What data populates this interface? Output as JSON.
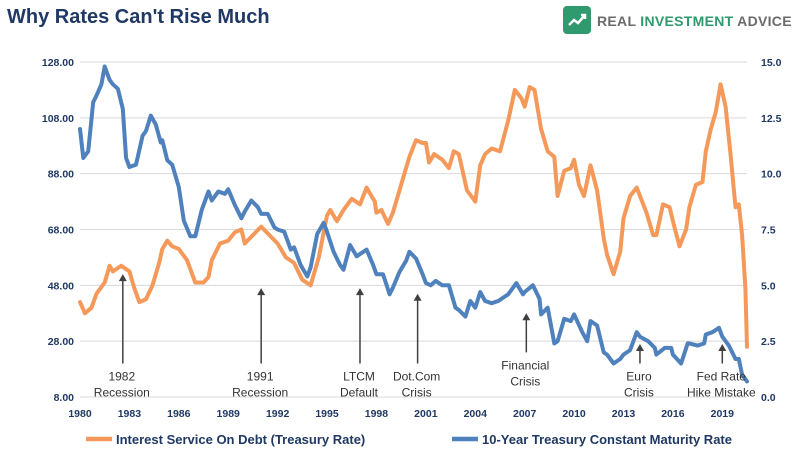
{
  "title": "Why Rates Can't Rise Much",
  "brand": {
    "name_part1": "REAL ",
    "name_part2": "INVESTMENT",
    "name_part3": " ADVICE",
    "icon": "chart-badge-icon",
    "color": "#2e9a6e"
  },
  "chart_data": {
    "type": "line",
    "title": "Why Rates Can't Rise Much",
    "x_range": [
      1980,
      2020.5
    ],
    "x_ticks": [
      "1980",
      "1983",
      "1986",
      "1989",
      "1992",
      "1995",
      "1998",
      "2001",
      "2004",
      "2007",
      "2010",
      "2013",
      "2016",
      "2019"
    ],
    "y_left": {
      "range": [
        8,
        128
      ],
      "ticks": [
        "8.00",
        "28.00",
        "48.00",
        "68.00",
        "88.00",
        "108.00",
        "128.00"
      ]
    },
    "y_right": {
      "range": [
        0,
        15
      ],
      "ticks": [
        "0.0",
        "2.5",
        "5.0",
        "7.5",
        "10.0",
        "12.5",
        "15.0"
      ]
    },
    "grid": "horizontal",
    "legend_position": "bottom",
    "series": [
      {
        "name": "Interest Service On Debt (Treasury Rate)",
        "axis": "left",
        "color": "#f4995a",
        "points": [
          [
            1980,
            42
          ],
          [
            1980.3,
            38
          ],
          [
            1980.7,
            40
          ],
          [
            1981,
            45
          ],
          [
            1981.5,
            49
          ],
          [
            1981.8,
            55
          ],
          [
            1982,
            53
          ],
          [
            1982.5,
            55
          ],
          [
            1983,
            53
          ],
          [
            1983.3,
            47
          ],
          [
            1983.6,
            42
          ],
          [
            1984,
            43
          ],
          [
            1984.4,
            48
          ],
          [
            1984.8,
            56
          ],
          [
            1985,
            61
          ],
          [
            1985.3,
            64
          ],
          [
            1985.6,
            62
          ],
          [
            1986,
            61
          ],
          [
            1986.5,
            57
          ],
          [
            1987,
            49
          ],
          [
            1987.5,
            49
          ],
          [
            1987.8,
            51
          ],
          [
            1988,
            57
          ],
          [
            1988.5,
            63
          ],
          [
            1989,
            64
          ],
          [
            1989.4,
            67
          ],
          [
            1989.8,
            68
          ],
          [
            1990,
            63
          ],
          [
            1990.5,
            66
          ],
          [
            1991,
            69
          ],
          [
            1991.5,
            66
          ],
          [
            1992,
            63
          ],
          [
            1992.5,
            58
          ],
          [
            1993,
            56
          ],
          [
            1993.5,
            50
          ],
          [
            1994,
            48
          ],
          [
            1994.5,
            58
          ],
          [
            1995,
            73
          ],
          [
            1995.2,
            75
          ],
          [
            1995.6,
            71
          ],
          [
            1996,
            75
          ],
          [
            1996.5,
            79
          ],
          [
            1997,
            77
          ],
          [
            1997.4,
            83
          ],
          [
            1997.9,
            78
          ],
          [
            1998,
            74
          ],
          [
            1998.3,
            75
          ],
          [
            1998.7,
            70
          ],
          [
            1999,
            74
          ],
          [
            1999.5,
            84
          ],
          [
            2000,
            94
          ],
          [
            2000.4,
            100
          ],
          [
            2000.8,
            99
          ],
          [
            2001,
            99
          ],
          [
            2001.2,
            92
          ],
          [
            2001.5,
            95
          ],
          [
            2002,
            93
          ],
          [
            2002.4,
            90
          ],
          [
            2002.7,
            96
          ],
          [
            2003,
            95
          ],
          [
            2003.5,
            82
          ],
          [
            2004,
            78
          ],
          [
            2004.3,
            91
          ],
          [
            2004.6,
            95
          ],
          [
            2005,
            97
          ],
          [
            2005.5,
            96
          ],
          [
            2006,
            107
          ],
          [
            2006.4,
            118
          ],
          [
            2006.8,
            115
          ],
          [
            2007,
            112
          ],
          [
            2007.3,
            119
          ],
          [
            2007.6,
            118
          ],
          [
            2008,
            104
          ],
          [
            2008.4,
            96
          ],
          [
            2008.8,
            94
          ],
          [
            2009,
            80
          ],
          [
            2009.4,
            89
          ],
          [
            2009.8,
            90
          ],
          [
            2010,
            93
          ],
          [
            2010.3,
            84
          ],
          [
            2010.6,
            80
          ],
          [
            2011,
            91
          ],
          [
            2011.4,
            82
          ],
          [
            2011.8,
            65
          ],
          [
            2012,
            59
          ],
          [
            2012.4,
            52
          ],
          [
            2012.8,
            60
          ],
          [
            2013,
            72
          ],
          [
            2013.4,
            80
          ],
          [
            2013.8,
            83
          ],
          [
            2014,
            80
          ],
          [
            2014.4,
            74
          ],
          [
            2014.8,
            66
          ],
          [
            2015,
            66
          ],
          [
            2015.4,
            77
          ],
          [
            2015.8,
            76
          ],
          [
            2016,
            71
          ],
          [
            2016.4,
            62
          ],
          [
            2016.8,
            68
          ],
          [
            2017,
            76
          ],
          [
            2017.4,
            84
          ],
          [
            2017.8,
            85
          ],
          [
            2018,
            96
          ],
          [
            2018.3,
            104
          ],
          [
            2018.6,
            110
          ],
          [
            2018.9,
            120
          ],
          [
            2019.2,
            112
          ],
          [
            2019.5,
            95
          ],
          [
            2019.8,
            76
          ],
          [
            2020,
            77
          ],
          [
            2020.2,
            66
          ],
          [
            2020.4,
            47
          ],
          [
            2020.5,
            26
          ]
        ]
      },
      {
        "name": "10-Year Treasury Constant Maturity Rate",
        "axis": "right",
        "color": "#4f81bd",
        "points": [
          [
            1980,
            12.0
          ],
          [
            1980.2,
            10.7
          ],
          [
            1980.5,
            11.0
          ],
          [
            1980.8,
            13.2
          ],
          [
            1981,
            13.5
          ],
          [
            1981.3,
            14.0
          ],
          [
            1981.5,
            14.8
          ],
          [
            1981.8,
            14.2
          ],
          [
            1982,
            14.0
          ],
          [
            1982.3,
            13.8
          ],
          [
            1982.6,
            12.9
          ],
          [
            1982.8,
            10.7
          ],
          [
            1983,
            10.3
          ],
          [
            1983.4,
            10.4
          ],
          [
            1983.8,
            11.7
          ],
          [
            1984,
            11.9
          ],
          [
            1984.3,
            12.6
          ],
          [
            1984.6,
            12.2
          ],
          [
            1984.9,
            11.4
          ],
          [
            1985,
            11.5
          ],
          [
            1985.3,
            10.6
          ],
          [
            1985.6,
            10.4
          ],
          [
            1986,
            9.4
          ],
          [
            1986.3,
            7.9
          ],
          [
            1986.7,
            7.2
          ],
          [
            1987,
            7.2
          ],
          [
            1987.4,
            8.4
          ],
          [
            1987.8,
            9.2
          ],
          [
            1988,
            8.8
          ],
          [
            1988.4,
            9.2
          ],
          [
            1988.8,
            9.1
          ],
          [
            1989,
            9.3
          ],
          [
            1989.4,
            8.6
          ],
          [
            1989.8,
            8.0
          ],
          [
            1990,
            8.3
          ],
          [
            1990.4,
            8.8
          ],
          [
            1990.8,
            8.5
          ],
          [
            1991,
            8.2
          ],
          [
            1991.4,
            8.2
          ],
          [
            1991.8,
            7.6
          ],
          [
            1992,
            7.5
          ],
          [
            1992.4,
            7.4
          ],
          [
            1992.8,
            6.6
          ],
          [
            1993,
            6.7
          ],
          [
            1993.4,
            5.9
          ],
          [
            1993.8,
            5.4
          ],
          [
            1994,
            5.8
          ],
          [
            1994.4,
            7.3
          ],
          [
            1994.8,
            7.8
          ],
          [
            1995,
            7.4
          ],
          [
            1995.4,
            6.5
          ],
          [
            1995.8,
            5.9
          ],
          [
            1996,
            5.7
          ],
          [
            1996.4,
            6.8
          ],
          [
            1996.8,
            6.3
          ],
          [
            1997,
            6.4
          ],
          [
            1997.4,
            6.6
          ],
          [
            1997.8,
            5.9
          ],
          [
            1998,
            5.5
          ],
          [
            1998.4,
            5.5
          ],
          [
            1998.8,
            4.6
          ],
          [
            1999,
            4.9
          ],
          [
            1999.4,
            5.6
          ],
          [
            1999.8,
            6.1
          ],
          [
            2000,
            6.5
          ],
          [
            2000.4,
            6.2
          ],
          [
            2000.8,
            5.5
          ],
          [
            2001,
            5.1
          ],
          [
            2001.3,
            5.0
          ],
          [
            2001.6,
            5.2
          ],
          [
            2002,
            5.0
          ],
          [
            2002.4,
            5.0
          ],
          [
            2002.8,
            4.0
          ],
          [
            2003,
            3.9
          ],
          [
            2003.4,
            3.6
          ],
          [
            2003.7,
            4.3
          ],
          [
            2004,
            4.0
          ],
          [
            2004.3,
            4.7
          ],
          [
            2004.6,
            4.3
          ],
          [
            2005,
            4.2
          ],
          [
            2005.4,
            4.3
          ],
          [
            2005.8,
            4.5
          ],
          [
            2006,
            4.6
          ],
          [
            2006.5,
            5.1
          ],
          [
            2006.9,
            4.6
          ],
          [
            2007,
            4.7
          ],
          [
            2007.5,
            5.0
          ],
          [
            2007.9,
            4.4
          ],
          [
            2008,
            3.7
          ],
          [
            2008.4,
            4.0
          ],
          [
            2008.8,
            2.4
          ],
          [
            2009,
            2.5
          ],
          [
            2009.4,
            3.5
          ],
          [
            2009.8,
            3.4
          ],
          [
            2010,
            3.7
          ],
          [
            2010.5,
            2.9
          ],
          [
            2010.8,
            2.5
          ],
          [
            2011,
            3.4
          ],
          [
            2011.4,
            3.2
          ],
          [
            2011.8,
            2.0
          ],
          [
            2012,
            1.9
          ],
          [
            2012.4,
            1.5
          ],
          [
            2012.8,
            1.7
          ],
          [
            2013,
            1.9
          ],
          [
            2013.4,
            2.1
          ],
          [
            2013.8,
            2.9
          ],
          [
            2014,
            2.7
          ],
          [
            2014.5,
            2.5
          ],
          [
            2014.9,
            2.2
          ],
          [
            2015,
            1.9
          ],
          [
            2015.5,
            2.2
          ],
          [
            2015.9,
            2.2
          ],
          [
            2016,
            1.9
          ],
          [
            2016.5,
            1.5
          ],
          [
            2016.9,
            2.4
          ],
          [
            2017,
            2.4
          ],
          [
            2017.5,
            2.3
          ],
          [
            2017.9,
            2.4
          ],
          [
            2018,
            2.8
          ],
          [
            2018.4,
            2.9
          ],
          [
            2018.8,
            3.1
          ],
          [
            2019,
            2.7
          ],
          [
            2019.4,
            2.3
          ],
          [
            2019.8,
            1.7
          ],
          [
            2020,
            1.7
          ],
          [
            2020.2,
            1.0
          ],
          [
            2020.5,
            0.7
          ]
        ]
      }
    ],
    "annotations": [
      {
        "lines": [
          "1982",
          "Recession"
        ],
        "x": 1982.6,
        "arrow_top_left": 52,
        "arrow_bottom_left": 20
      },
      {
        "lines": [
          "1991",
          "Recession"
        ],
        "x": 1991.0,
        "arrow_top_left": 47,
        "arrow_bottom_left": 20
      },
      {
        "lines": [
          "LTCM",
          "Default"
        ],
        "x": 1997.0,
        "arrow_top_left": 47,
        "arrow_bottom_left": 20
      },
      {
        "lines": [
          "Dot.Com",
          "Crisis"
        ],
        "x": 2000.5,
        "arrow_top_left": 45,
        "arrow_bottom_left": 20
      },
      {
        "lines": [
          "Financial",
          "Crisis"
        ],
        "x": 2007.1,
        "arrow_top_left": 38,
        "arrow_bottom_left": 24
      },
      {
        "lines": [
          "Euro",
          "Crisis"
        ],
        "x": 2014.0,
        "arrow_top_left": 27,
        "arrow_bottom_left": 20
      },
      {
        "lines": [
          "Fed Rate",
          "Hike Mistake"
        ],
        "x": 2019.0,
        "arrow_top_left": 27,
        "arrow_bottom_left": 20
      }
    ]
  }
}
